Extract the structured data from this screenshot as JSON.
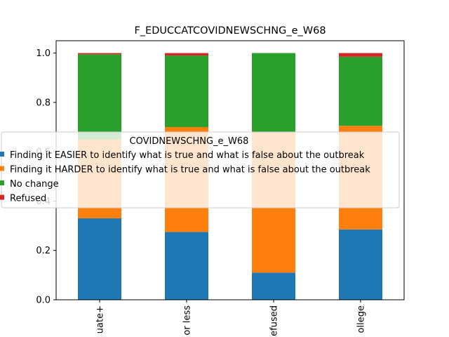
{
  "chart_data": {
    "type": "bar",
    "stacked": true,
    "title": "F_EDUCCATCOVIDNEWSCHNG_e_W68",
    "xlabel": "",
    "ylabel": "",
    "ylim": [
      0,
      1.05
    ],
    "yticks": [
      "0.0",
      "0.2",
      "0.4",
      "0.6",
      "0.8",
      "1.0"
    ],
    "categories": [
      "College grad+",
      "HS or less",
      "Refused",
      "Some college"
    ],
    "category_labels_visible": [
      "uate+",
      "or less",
      "efused",
      "ollege"
    ],
    "series": [
      {
        "name": "Finding it EASIER to identify what is true and what is false about the outbreak",
        "color": "#1f77b4",
        "values": [
          0.33,
          0.275,
          0.11,
          0.285
        ]
      },
      {
        "name": "Finding it HARDER to identify what is true and what is false about the outbreak",
        "color": "#ff7f0e",
        "values": [
          0.32,
          0.425,
          0.57,
          0.42
        ]
      },
      {
        "name": "No change",
        "color": "#2ca02c",
        "values": [
          0.345,
          0.29,
          0.32,
          0.28
        ]
      },
      {
        "name": "Refused",
        "color": "#d62728",
        "values": [
          0.005,
          0.01,
          0.0,
          0.015
        ]
      }
    ],
    "legend": {
      "title": "COVIDNEWSCHNG_e_W68",
      "placement": "center"
    }
  }
}
